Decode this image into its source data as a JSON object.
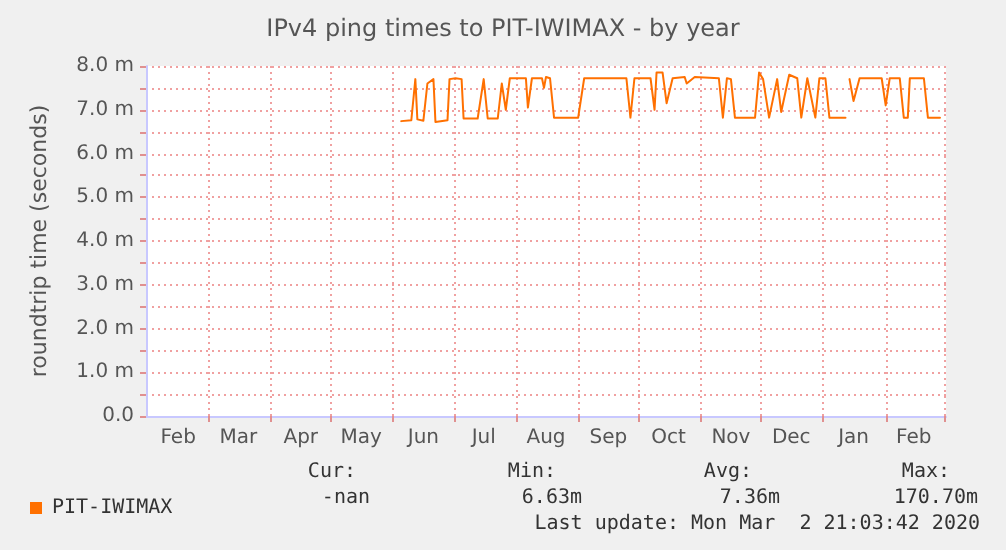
{
  "chart_data": {
    "type": "line",
    "title": "IPv4 ping times to PIT-IWIMAX - by year",
    "ylabel": "roundtrip time (seconds)",
    "x": [
      "2019-06-05",
      "2019-06-10",
      "2019-06-12",
      "2019-06-13",
      "2019-06-16",
      "2019-06-18",
      "2019-06-21",
      "2019-06-22",
      "2019-06-28",
      "2019-06-29",
      "2019-07-02",
      "2019-07-05",
      "2019-07-06",
      "2019-07-13",
      "2019-07-16",
      "2019-07-18",
      "2019-07-23",
      "2019-07-25",
      "2019-07-27",
      "2019-07-29",
      "2019-08-06",
      "2019-08-07",
      "2019-08-09",
      "2019-08-14",
      "2019-08-15",
      "2019-08-16",
      "2019-08-18",
      "2019-08-20",
      "2019-09-01",
      "2019-09-04",
      "2019-09-25",
      "2019-09-27",
      "2019-09-29",
      "2019-10-07",
      "2019-10-09",
      "2019-10-10",
      "2019-10-13",
      "2019-10-15",
      "2019-10-18",
      "2019-10-24",
      "2019-10-25",
      "2019-10-29",
      "2019-11-10",
      "2019-11-12",
      "2019-11-14",
      "2019-11-16",
      "2019-11-18",
      "2019-11-28",
      "2019-11-30",
      "2019-12-02",
      "2019-12-05",
      "2019-12-09",
      "2019-12-11",
      "2019-12-15",
      "2019-12-19",
      "2019-12-21",
      "2019-12-24",
      "2019-12-28",
      "2019-12-30",
      "2020-01-02",
      "2020-01-04",
      "2020-01-12",
      "2020-01-13",
      "2020-01-14",
      "2020-01-16",
      "2020-01-19",
      "2020-01-23",
      "2020-01-30",
      "2020-02-01",
      "2020-02-03",
      "2020-02-08",
      "2020-02-10",
      "2020-02-12",
      "2020-02-13",
      "2020-02-20",
      "2020-02-22",
      "2020-02-28"
    ],
    "series": [
      {
        "name": "PIT-IWIMAX",
        "color": "#ff7000",
        "values": [
          6.74,
          6.76,
          7.7,
          6.78,
          6.75,
          7.6,
          7.7,
          6.72,
          6.76,
          7.7,
          7.72,
          7.7,
          6.8,
          6.8,
          7.7,
          6.8,
          6.8,
          7.6,
          7.0,
          7.72,
          7.72,
          7.05,
          7.72,
          7.72,
          7.5,
          7.75,
          7.72,
          6.82,
          6.82,
          7.72,
          7.72,
          6.82,
          7.72,
          7.72,
          7.0,
          7.85,
          7.85,
          7.15,
          7.72,
          7.75,
          7.6,
          7.75,
          7.72,
          6.82,
          7.72,
          7.7,
          6.82,
          6.82,
          7.85,
          7.7,
          6.82,
          7.7,
          6.95,
          7.8,
          7.72,
          6.82,
          7.72,
          6.82,
          7.72,
          7.72,
          6.82,
          6.82,
          null,
          7.7,
          7.2,
          7.72,
          7.72,
          7.72,
          7.1,
          7.72,
          7.72,
          6.82,
          6.82,
          7.72,
          7.72,
          6.82,
          6.82
        ]
      }
    ],
    "xlim": [
      "2019-01-29",
      "2020-03-02"
    ],
    "xticks": [
      {
        "value": "2019-02-14",
        "label": "Feb"
      },
      {
        "value": "2019-03-01",
        "label": null
      },
      {
        "value": "2019-03-16",
        "label": "Mar"
      },
      {
        "value": "2019-04-01",
        "label": null
      },
      {
        "value": "2019-04-16",
        "label": "Apr"
      },
      {
        "value": "2019-05-01",
        "label": null
      },
      {
        "value": "2019-05-16",
        "label": "May"
      },
      {
        "value": "2019-06-01",
        "label": null
      },
      {
        "value": "2019-06-16",
        "label": "Jun"
      },
      {
        "value": "2019-07-01",
        "label": null
      },
      {
        "value": "2019-07-16",
        "label": "Jul"
      },
      {
        "value": "2019-08-01",
        "label": null
      },
      {
        "value": "2019-08-16",
        "label": "Aug"
      },
      {
        "value": "2019-09-01",
        "label": null
      },
      {
        "value": "2019-09-16",
        "label": "Sep"
      },
      {
        "value": "2019-10-01",
        "label": null
      },
      {
        "value": "2019-10-16",
        "label": "Oct"
      },
      {
        "value": "2019-11-01",
        "label": null
      },
      {
        "value": "2019-11-16",
        "label": "Nov"
      },
      {
        "value": "2019-12-01",
        "label": null
      },
      {
        "value": "2019-12-16",
        "label": "Dec"
      },
      {
        "value": "2020-01-01",
        "label": null
      },
      {
        "value": "2020-01-16",
        "label": "Jan"
      },
      {
        "value": "2020-02-01",
        "label": null
      },
      {
        "value": "2020-02-15",
        "label": "Feb"
      },
      {
        "value": "2020-03-01",
        "label": null
      }
    ],
    "ylim": [
      0,
      8
    ],
    "yticks": [
      {
        "value": 0,
        "label": "0.0"
      },
      {
        "value": 0.5,
        "label": null
      },
      {
        "value": 1,
        "label": "1.0 m"
      },
      {
        "value": 1.5,
        "label": null
      },
      {
        "value": 2,
        "label": "2.0 m"
      },
      {
        "value": 2.5,
        "label": null
      },
      {
        "value": 3,
        "label": "3.0 m"
      },
      {
        "value": 3.5,
        "label": null
      },
      {
        "value": 4,
        "label": "4.0 m"
      },
      {
        "value": 4.5,
        "label": null
      },
      {
        "value": 5,
        "label": "5.0 m"
      },
      {
        "value": 5.5,
        "label": null
      },
      {
        "value": 6,
        "label": "6.0 m"
      },
      {
        "value": 6.5,
        "label": null
      },
      {
        "value": 7,
        "label": "7.0 m"
      },
      {
        "value": 7.5,
        "label": null
      },
      {
        "value": 8,
        "label": "8.0 m"
      }
    ],
    "grid": true,
    "legend": "bottom left",
    "marker": "none",
    "line_style": "solid",
    "annotations": [
      "Cur:",
      "Min:",
      "Avg:",
      "Max:",
      "-nan",
      "6.63m",
      "7.36m",
      "170.70m",
      "Last update: Mon Mar  2 21:03:42 2020"
    ]
  }
}
